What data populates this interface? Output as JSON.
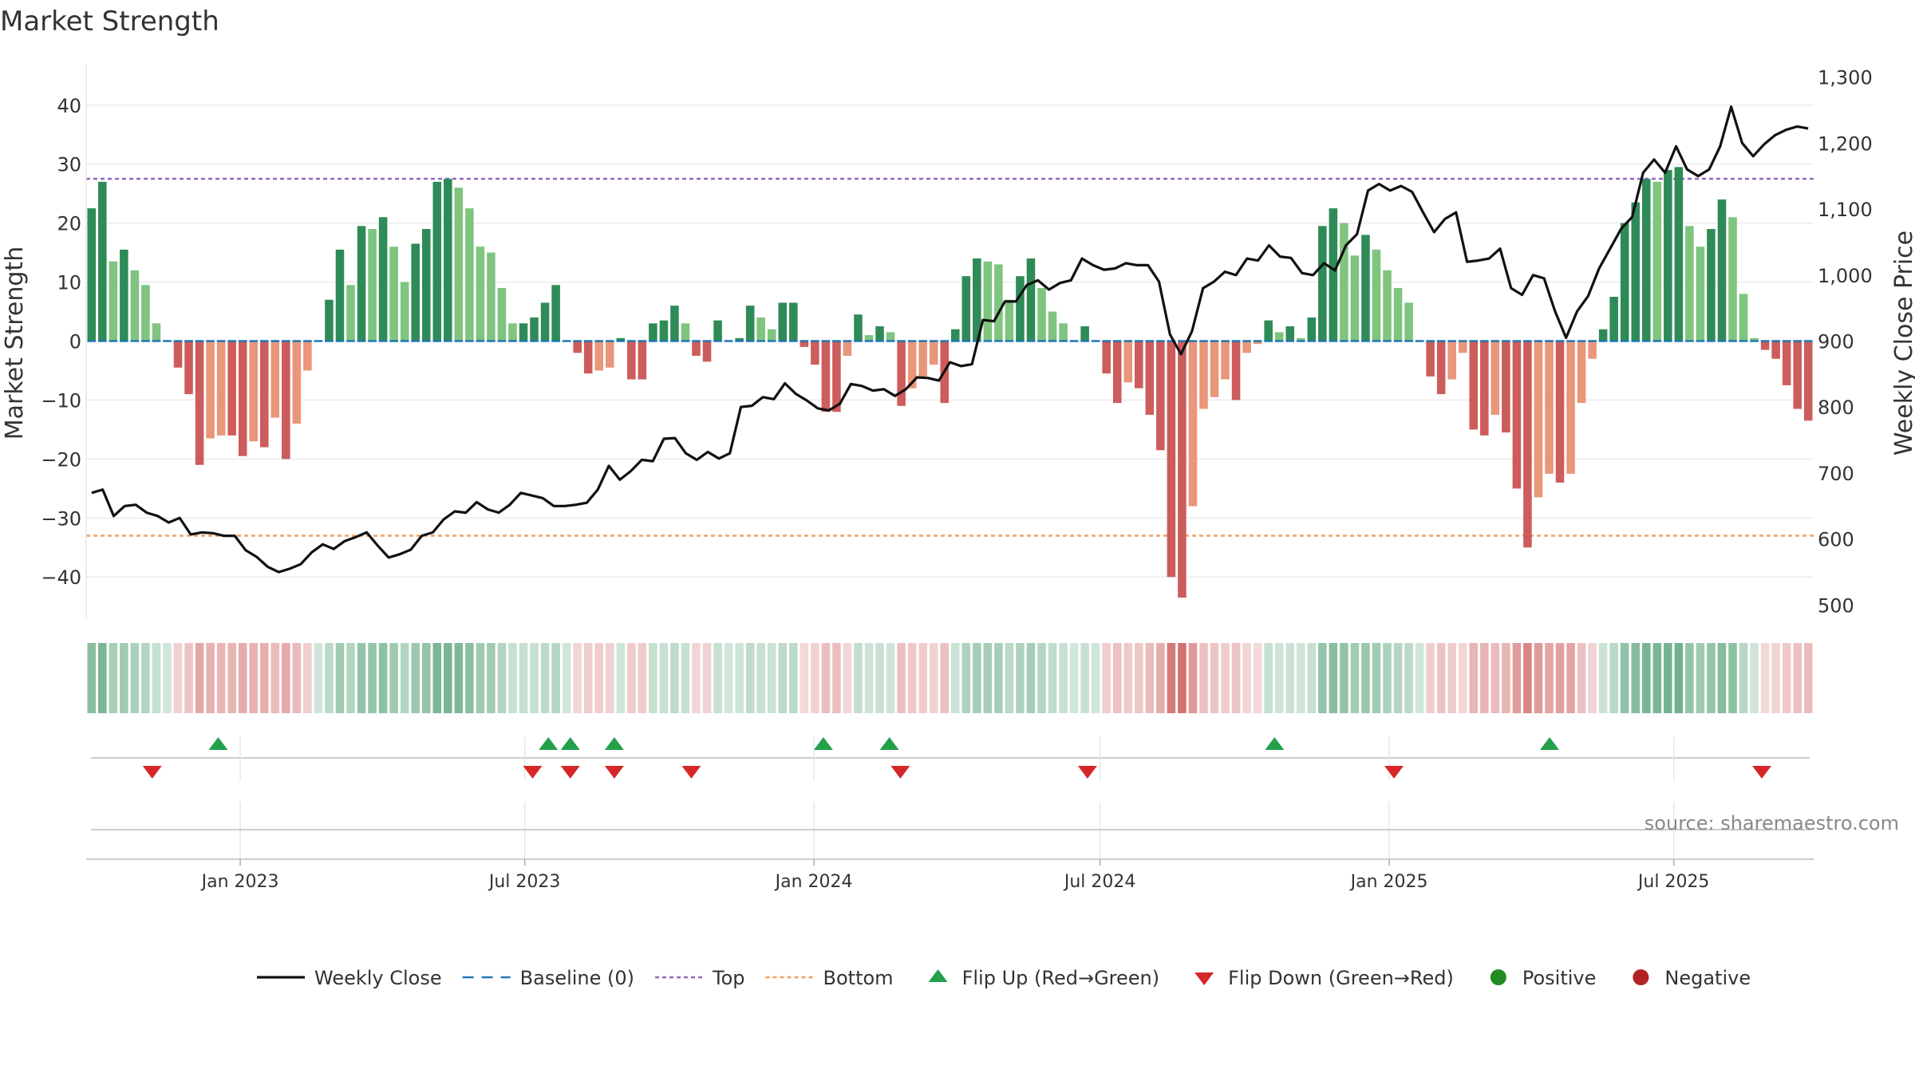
{
  "chart_data": {
    "type": "bar",
    "title": "Market Strength",
    "ylabel": "Market Strength",
    "y2label": "Weekly Close Price",
    "ylim": [
      -47,
      47
    ],
    "y2lim": [
      480,
      1320
    ],
    "yticks": [
      -40,
      -30,
      -20,
      -10,
      0,
      10,
      20,
      30,
      40
    ],
    "ytick_labels": [
      "−40",
      "−30",
      "−20",
      "−10",
      "0",
      "10",
      "20",
      "30",
      "40"
    ],
    "y2ticks": [
      500,
      600,
      700,
      800,
      900,
      1000,
      1100,
      1200,
      1300
    ],
    "y2tick_labels": [
      "500",
      "600",
      "700",
      "800",
      "900",
      "1,000",
      "1,100",
      "1,200",
      "1,300"
    ],
    "top_line": 27.5,
    "bottom_line": -33,
    "x_start": "2022-09-25",
    "x_end": "2025-09-28",
    "xticks": [
      {
        "date": "2023-01-01",
        "label": "Jan 2023"
      },
      {
        "date": "2023-07-01",
        "label": "Jul 2023"
      },
      {
        "date": "2024-01-01",
        "label": "Jan 2024"
      },
      {
        "date": "2024-07-01",
        "label": "Jul 2024"
      },
      {
        "date": "2025-01-01",
        "label": "Jan 2025"
      },
      {
        "date": "2025-07-01",
        "label": "Jul 2025"
      }
    ],
    "legend_position": "bottom",
    "colors": {
      "strong_positive": "#2e8b57",
      "weak_positive": "#7fc47f",
      "strong_negative": "#cd5c5c",
      "weak_negative": "#e9967a",
      "close_line": "#111111",
      "baseline": "#1f77b4",
      "top": "#9467bd",
      "bottom": "#f0a060",
      "flip_up": "#22a04a",
      "flip_down": "#d62728",
      "positive_dot": "#228b22",
      "negative_dot": "#b22222"
    },
    "strength": [
      22.5,
      27,
      13.5,
      15.5,
      12,
      9.5,
      3,
      0,
      -4.5,
      -9,
      -21,
      -16.5,
      -16,
      -16,
      -19.5,
      -17,
      -18,
      -13,
      -20,
      -14,
      -5,
      0,
      7,
      15.5,
      9.5,
      19.5,
      19,
      21,
      16,
      10,
      16.5,
      19,
      27,
      27.5,
      26,
      22.5,
      16,
      15,
      9,
      3,
      3,
      4,
      6.5,
      9.5,
      0,
      -2,
      -5.5,
      -5,
      -4.5,
      0.5,
      -6.5,
      -6.5,
      3,
      3.5,
      6,
      3,
      -2.5,
      -3.5,
      3.5,
      0,
      0.5,
      6,
      4,
      2,
      6.5,
      6.5,
      -1,
      -4,
      -12,
      -12,
      -2.5,
      4.5,
      1,
      2.5,
      1.5,
      -11,
      -8,
      -6,
      -4,
      -10.5,
      2,
      11,
      14,
      13.5,
      13,
      7,
      11,
      14,
      9,
      5,
      3,
      0,
      2.5,
      0,
      -5.5,
      -10.5,
      -7,
      -8,
      -12.5,
      -18.5,
      -40,
      -43.5,
      -28,
      -11.5,
      -9.5,
      -6.5,
      -10,
      -2,
      -0.5,
      3.5,
      1.5,
      2.5,
      0.5,
      4,
      19.5,
      22.5,
      20,
      14.5,
      18,
      15.5,
      12,
      9,
      6.5,
      0,
      -6,
      -9,
      -6.5,
      -2,
      -15,
      -16,
      -12.5,
      -15.5,
      -25,
      -35,
      -26.5,
      -22.5,
      -24,
      -22.5,
      -10.5,
      -3,
      2,
      7.5,
      20,
      23.5,
      27.5,
      27,
      29,
      29.5,
      19.5,
      16,
      19,
      24,
      21,
      8,
      0.5,
      -1.5,
      -3,
      -7.5,
      -11.5,
      -13.5
    ],
    "close": [
      670,
      675,
      635,
      650,
      652,
      640,
      635,
      625,
      632,
      607,
      610,
      609,
      605,
      605,
      583,
      573,
      558,
      550,
      555,
      562,
      580,
      592,
      585,
      597,
      603,
      610,
      590,
      572,
      577,
      584,
      605,
      610,
      630,
      642,
      640,
      656,
      645,
      640,
      652,
      670,
      666,
      662,
      650,
      650,
      652,
      655,
      675,
      711,
      690,
      703,
      720,
      718,
      752,
      753,
      730,
      720,
      732,
      722,
      730,
      800,
      802,
      815,
      812,
      836,
      820,
      810,
      798,
      795,
      805,
      835,
      832,
      825,
      827,
      817,
      827,
      845,
      844,
      840,
      868,
      862,
      865,
      932,
      930,
      960,
      960,
      985,
      992,
      978,
      988,
      992,
      1025,
      1015,
      1008,
      1010,
      1018,
      1015,
      1015,
      990,
      910,
      880,
      915,
      980,
      990,
      1005,
      1000,
      1025,
      1022,
      1045,
      1028,
      1026,
      1003,
      1000,
      1018,
      1007,
      1045,
      1062,
      1128,
      1138,
      1128,
      1135,
      1126,
      1095,
      1065,
      1085,
      1095,
      1020,
      1022,
      1025,
      1040,
      980,
      970,
      1000,
      995,
      945,
      905,
      945,
      968,
      1010,
      1040,
      1070,
      1088,
      1155,
      1175,
      1155,
      1195,
      1160,
      1150,
      1160,
      1195,
      1255,
      1200,
      1180,
      1198,
      1212,
      1220,
      1225,
      1222
    ],
    "flip_up_dates": [
      "2022-12-18",
      "2023-07-16",
      "2023-07-30",
      "2023-08-27",
      "2024-01-07",
      "2024-02-18",
      "2024-10-20",
      "2025-04-13"
    ],
    "flip_down_dates": [
      "2022-11-06",
      "2023-07-06",
      "2023-07-30",
      "2023-08-27",
      "2023-10-15",
      "2024-02-25",
      "2024-06-23",
      "2025-01-04",
      "2025-08-26"
    ],
    "legend": [
      {
        "key": "close",
        "label": "Weekly Close"
      },
      {
        "key": "baseline",
        "label": "Baseline (0)"
      },
      {
        "key": "top",
        "label": "Top"
      },
      {
        "key": "bottom",
        "label": "Bottom"
      },
      {
        "key": "flip_up",
        "label": "Flip Up (Red→Green)"
      },
      {
        "key": "flip_down",
        "label": "Flip Down (Green→Red)"
      },
      {
        "key": "positive",
        "label": "Positive"
      },
      {
        "key": "negative",
        "label": "Negative"
      }
    ],
    "source": "source: sharemaestro.com"
  }
}
